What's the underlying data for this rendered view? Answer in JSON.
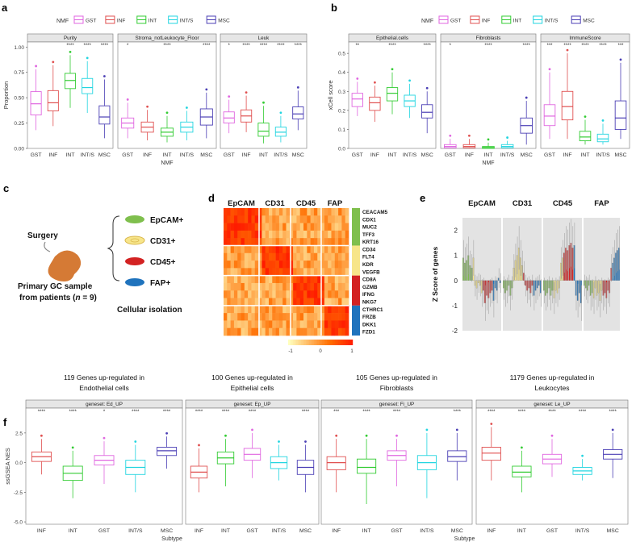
{
  "panel_letters": [
    "a",
    "b",
    "c",
    "d",
    "e",
    "f"
  ],
  "colors": {
    "GST": "#e066e0",
    "INF": "#e05050",
    "INT": "#33cc33",
    "INT/S": "#22d5e0",
    "MSC": "#4b3fb5",
    "EpCAM": "#7fbf4d",
    "CD31": "#f7e58a",
    "CD45": "#d32222",
    "FAP": "#1f73bd"
  },
  "legend_title": "NMF",
  "legend_items": [
    "GST",
    "INF",
    "INT",
    "INT/S",
    "MSC"
  ],
  "chart_data": [
    {
      "id": "a",
      "type": "box",
      "ylabel": "Proportion",
      "xlabel": "NMF",
      "ylim": [
        0,
        1.05
      ],
      "yticks": [
        "0.00",
        "0.25",
        "0.50",
        "0.75",
        "1.00"
      ],
      "categories": [
        "GST",
        "INF",
        "INT",
        "INT/S",
        "MSC"
      ],
      "facets": [
        {
          "title": "Purity",
          "sig": [
            "",
            "",
            "****",
            "****",
            "****"
          ],
          "boxes": [
            [
              0.18,
              0.33,
              0.44,
              0.56,
              0.78
            ],
            [
              0.22,
              0.37,
              0.45,
              0.57,
              0.82
            ],
            [
              0.4,
              0.59,
              0.67,
              0.74,
              0.92
            ],
            [
              0.35,
              0.54,
              0.6,
              0.69,
              0.86
            ],
            [
              0.1,
              0.24,
              0.31,
              0.42,
              0.68
            ]
          ]
        },
        {
          "title": "Stroma_notLeukocyte_Floor",
          "sig": [
            "*",
            "",
            "****",
            "",
            "****"
          ],
          "boxes": [
            [
              0.1,
              0.2,
              0.25,
              0.3,
              0.45
            ],
            [
              0.08,
              0.16,
              0.21,
              0.26,
              0.38
            ],
            [
              0.06,
              0.12,
              0.16,
              0.2,
              0.32
            ],
            [
              0.08,
              0.16,
              0.21,
              0.26,
              0.37
            ],
            [
              0.1,
              0.23,
              0.31,
              0.39,
              0.55
            ]
          ]
        },
        {
          "title": "Leuk",
          "sig": [
            "*",
            "****",
            "****",
            "****",
            "****"
          ],
          "boxes": [
            [
              0.15,
              0.25,
              0.3,
              0.36,
              0.48
            ],
            [
              0.16,
              0.26,
              0.32,
              0.38,
              0.52
            ],
            [
              0.05,
              0.12,
              0.17,
              0.25,
              0.42
            ],
            [
              0.06,
              0.12,
              0.16,
              0.21,
              0.32
            ],
            [
              0.18,
              0.29,
              0.34,
              0.41,
              0.57
            ]
          ]
        }
      ]
    },
    {
      "id": "b",
      "type": "box",
      "ylabel": "xCell score",
      "xlabel": "NMF",
      "ylim": [
        0,
        0.56
      ],
      "yticks": [
        "0.0",
        "0.1",
        "0.2",
        "0.3",
        "0.4",
        "0.5"
      ],
      "categories": [
        "GST",
        "INF",
        "INT",
        "INT/S",
        "MSC"
      ],
      "facets": [
        {
          "title": "Epithelial.cells",
          "sig": [
            "**",
            "",
            "****",
            "",
            "****"
          ],
          "boxes": [
            [
              0.17,
              0.22,
              0.26,
              0.29,
              0.35
            ],
            [
              0.14,
              0.2,
              0.24,
              0.27,
              0.33
            ],
            [
              0.18,
              0.25,
              0.29,
              0.32,
              0.4
            ],
            [
              0.16,
              0.22,
              0.25,
              0.28,
              0.34
            ],
            [
              0.08,
              0.16,
              0.19,
              0.23,
              0.3
            ]
          ]
        },
        {
          "title": "Fibroblasts",
          "sig": [
            "*",
            "",
            "****",
            "",
            "****"
          ],
          "boxes": [
            [
              0.0,
              0.003,
              0.01,
              0.02,
              0.05
            ],
            [
              0.0,
              0.003,
              0.01,
              0.02,
              0.05
            ],
            [
              0.0,
              0.0,
              0.005,
              0.01,
              0.03
            ],
            [
              0.0,
              0.003,
              0.01,
              0.02,
              0.04
            ],
            [
              0.02,
              0.08,
              0.12,
              0.16,
              0.25
            ]
          ]
        },
        {
          "title": "ImmuneScore",
          "sig": [
            "***",
            "****",
            "****",
            "****",
            "***"
          ],
          "boxes": [
            [
              0.05,
              0.12,
              0.17,
              0.23,
              0.4
            ],
            [
              0.05,
              0.15,
              0.22,
              0.3,
              0.5
            ],
            [
              0.02,
              0.04,
              0.06,
              0.09,
              0.15
            ],
            [
              0.02,
              0.035,
              0.05,
              0.075,
              0.13
            ],
            [
              0.05,
              0.1,
              0.16,
              0.25,
              0.45
            ]
          ]
        }
      ]
    },
    {
      "id": "e",
      "type": "bar",
      "ylabel": "Z Score of genes",
      "ylim": [
        -2,
        2.5
      ],
      "yticks": [
        "-2",
        "-1",
        "0",
        "1",
        "2"
      ],
      "groups": [
        "EpCAM",
        "CD31",
        "CD45",
        "FAP"
      ],
      "gene_sets": [
        "EpCAM",
        "CD31",
        "CD45",
        "FAP"
      ],
      "facets": [
        {
          "title": "EpCAM",
          "values": [
            0.9,
            0.7,
            0.8,
            1.0,
            0.6,
            0.5,
            0.9,
            -0.2,
            -0.3,
            -0.1,
            -0.2,
            -0.5,
            -0.4,
            -0.9,
            -0.6,
            -0.7,
            -0.5,
            -0.4,
            -0.8,
            -0.3,
            -0.4,
            0.1,
            -0.1
          ]
        },
        {
          "title": "CD31",
          "values": [
            -0.3,
            -0.5,
            -0.4,
            -0.2,
            -0.6,
            -0.3,
            0.5,
            0.8,
            1.0,
            1.3,
            0.9,
            0.6,
            0.3,
            -0.2,
            -0.4,
            -0.3,
            -0.5,
            -0.2,
            -0.6,
            -0.4,
            -0.3,
            -0.2,
            -0.5
          ]
        },
        {
          "title": "CD45",
          "values": [
            -0.4,
            -0.6,
            -0.5,
            -0.3,
            -0.6,
            -0.4,
            -0.7,
            -0.4,
            -0.5,
            -0.3,
            0.7,
            0.9,
            1.1,
            1.3,
            1.2,
            1.4,
            1.5,
            1.3,
            1.4,
            -0.6,
            -0.8,
            -0.5,
            -0.9
          ]
        },
        {
          "title": "FAP",
          "values": [
            -0.2,
            -0.3,
            -0.4,
            -0.2,
            -0.6,
            -0.5,
            -0.7,
            -0.3,
            -0.6,
            -0.5,
            -0.8,
            -0.4,
            -0.6,
            -0.5,
            -0.7,
            -0.4,
            -0.5,
            0.5,
            0.7,
            0.9,
            1.1,
            1.2,
            1.3
          ]
        }
      ]
    },
    {
      "id": "f",
      "type": "box",
      "ylabel": "ssGSEA NES",
      "xlabel": "Subtype",
      "ylim": [
        -5.2,
        4.6
      ],
      "yticks": [
        "-5.0",
        "-2.5",
        "0.0",
        "2.5"
      ],
      "categories": [
        "INF",
        "INT",
        "GST",
        "INT/S",
        "MSC"
      ],
      "facets": [
        {
          "title": "geneset: Ed_UP",
          "header": [
            "119 Genes up-regulated in",
            "Endothelial cells"
          ],
          "sig": [
            "****",
            "****",
            "*",
            "****",
            "****"
          ],
          "boxes": [
            [
              -1.0,
              0.1,
              0.5,
              0.9,
              2.0
            ],
            [
              -3.0,
              -1.5,
              -0.9,
              -0.3,
              1.0
            ],
            [
              -1.8,
              -0.2,
              0.2,
              0.6,
              1.8
            ],
            [
              -2.5,
              -1.0,
              -0.4,
              0.2,
              1.5
            ],
            [
              -0.5,
              0.6,
              1.0,
              1.3,
              2.2
            ]
          ]
        },
        {
          "title": "geneset: Ep_UP",
          "header": [
            "100 Genes up-regulated in",
            "Epithelial cells"
          ],
          "sig": [
            "****",
            "****",
            "****",
            "",
            "****"
          ],
          "boxes": [
            [
              -2.5,
              -1.3,
              -0.8,
              -0.3,
              1.2
            ],
            [
              -2.0,
              -0.1,
              0.4,
              0.9,
              2.0
            ],
            [
              -1.3,
              0.2,
              0.7,
              1.2,
              2.5
            ],
            [
              -1.5,
              -0.5,
              0.0,
              0.5,
              1.5
            ],
            [
              -2.5,
              -1.0,
              -0.4,
              0.2,
              1.5
            ]
          ]
        },
        {
          "title": "geneset: Fi_UP",
          "header": [
            "105 Genes up-regulated in",
            "Fibroblasts"
          ],
          "sig": [
            "***",
            "****",
            "****",
            "",
            "****"
          ],
          "boxes": [
            [
              -2.5,
              -0.6,
              0.0,
              0.5,
              2.0
            ],
            [
              -3.5,
              -0.9,
              -0.4,
              0.3,
              2.0
            ],
            [
              -2.0,
              0.2,
              0.6,
              1.0,
              2.0
            ],
            [
              -3.0,
              -0.6,
              0.0,
              0.6,
              2.5
            ],
            [
              -1.5,
              0.1,
              0.5,
              1.0,
              2.5
            ]
          ]
        },
        {
          "title": "geneset: Le_UP",
          "header": [
            "1179 Genes up-regulated in",
            "Leukocytes"
          ],
          "sig": [
            "****",
            "****",
            "****",
            "****",
            "****"
          ],
          "boxes": [
            [
              -1.5,
              0.2,
              0.8,
              1.3,
              3.0
            ],
            [
              -2.5,
              -1.2,
              -0.8,
              -0.3,
              1.0
            ],
            [
              -1.2,
              -0.1,
              0.3,
              0.7,
              2.0
            ],
            [
              -1.5,
              -1.0,
              -0.7,
              -0.4,
              0.3
            ],
            [
              -1.3,
              0.3,
              0.7,
              1.1,
              2.5
            ]
          ]
        }
      ]
    }
  ],
  "panel_c": {
    "surgery": "Surgery",
    "sample": "Primary GC sample",
    "patients": "from patients (",
    "n_label": "n",
    "n_value": "= 9)",
    "isolation": "Cellular isolation",
    "markers": [
      "EpCAM+",
      "CD31+",
      "CD45+",
      "FAP+"
    ]
  },
  "panel_d": {
    "type": "heatmap",
    "columns": [
      "EpCAM",
      "CD31",
      "CD45",
      "FAP"
    ],
    "genes": [
      "CEACAM5",
      "CDX1",
      "MUC2",
      "TFF3",
      "KRT16",
      "CD34",
      "FLT4",
      "KDR",
      "VEGFB",
      "CD8A",
      "GZMB",
      "IFNG",
      "NKG7",
      "CTHRC1",
      "FRZB",
      "DKK1",
      "FZD1"
    ],
    "colorbar": [
      "-1",
      "0",
      "1"
    ]
  }
}
